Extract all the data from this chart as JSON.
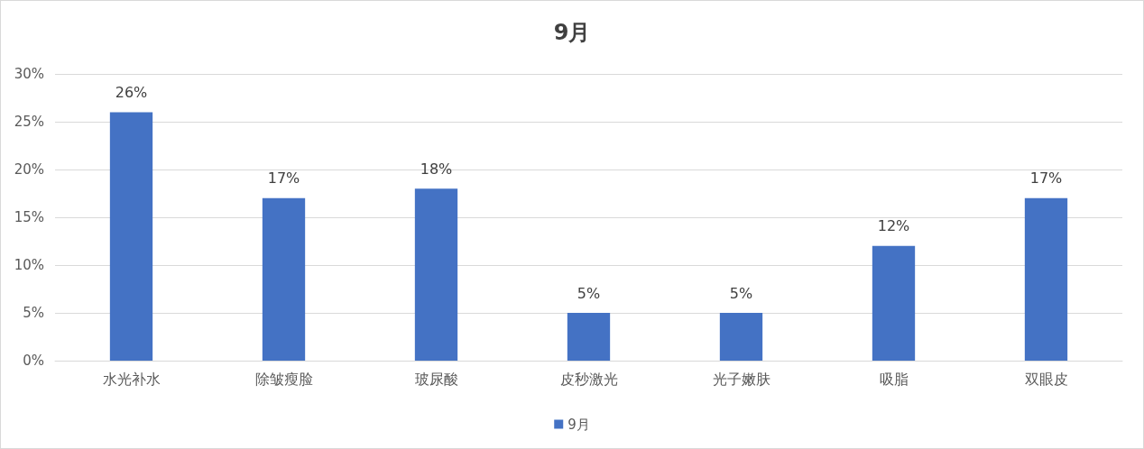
{
  "chart_data": {
    "type": "bar",
    "title": "9月",
    "categories": [
      "水光补水",
      "除皱瘦脸",
      "玻尿酸",
      "皮秒激光",
      "光子嫩肤",
      "吸脂",
      "双眼皮"
    ],
    "series": [
      {
        "name": "9月",
        "color": "#4472c4",
        "values": [
          26,
          17,
          18,
          5,
          5,
          12,
          17
        ]
      }
    ],
    "value_labels": [
      "26%",
      "17%",
      "18%",
      "5%",
      "5%",
      "12%",
      "17%"
    ],
    "ylim": [
      0,
      30
    ],
    "yticks": [
      {
        "value": 0,
        "label": "0%"
      },
      {
        "value": 5,
        "label": "5%"
      },
      {
        "value": 10,
        "label": "10%"
      },
      {
        "value": 15,
        "label": "15%"
      },
      {
        "value": 20,
        "label": "20%"
      },
      {
        "value": 25,
        "label": "25%"
      },
      {
        "value": 30,
        "label": "30%"
      }
    ],
    "grid": "y",
    "legend": "bottom"
  }
}
